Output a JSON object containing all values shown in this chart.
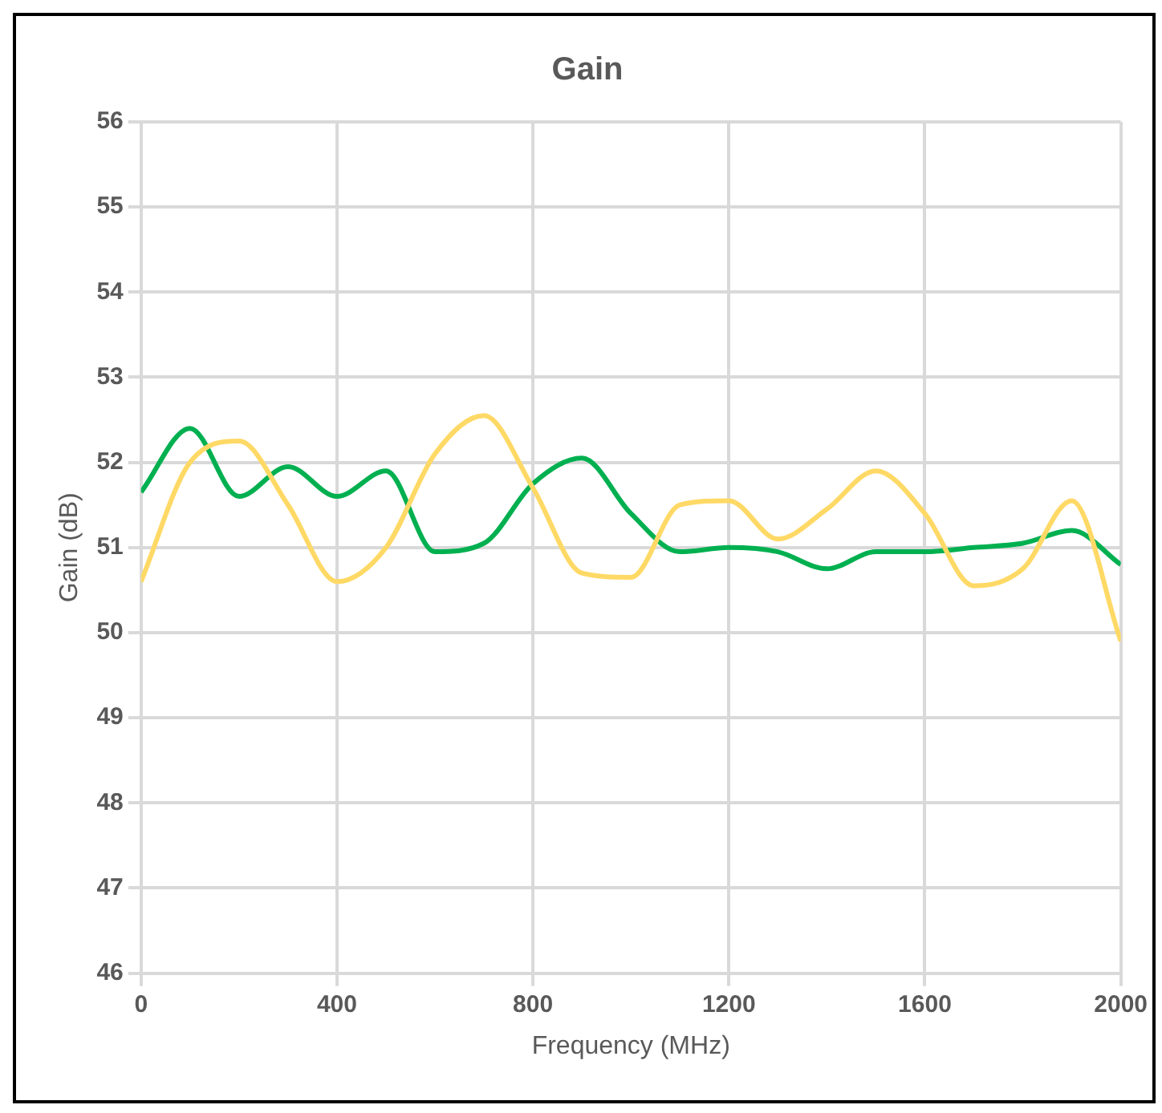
{
  "chart_data": {
    "type": "line",
    "title": "Gain",
    "xlabel": "Frequency (MHz)",
    "ylabel": "Gain (dB)",
    "x": [
      0,
      100,
      200,
      300,
      400,
      500,
      600,
      700,
      800,
      900,
      1000,
      1100,
      1200,
      1300,
      1400,
      1500,
      1600,
      1700,
      1800,
      1900,
      2000
    ],
    "series": [
      {
        "color": "#ffd966",
        "values": [
          50.6,
          52.0,
          52.25,
          51.5,
          50.6,
          51.0,
          52.1,
          52.55,
          51.7,
          50.7,
          50.65,
          51.5,
          51.55,
          51.1,
          51.45,
          51.9,
          51.4,
          50.55,
          50.75,
          51.55,
          49.9
        ]
      },
      {
        "color": "#00b050",
        "values": [
          51.65,
          52.4,
          51.6,
          51.95,
          51.6,
          51.9,
          50.95,
          51.05,
          51.75,
          52.05,
          51.4,
          50.95,
          51.0,
          50.95,
          50.75,
          50.95,
          50.95,
          51.0,
          51.05,
          51.2,
          50.8
        ]
      }
    ],
    "xlim": [
      0,
      2000
    ],
    "xticks": [
      0,
      400,
      800,
      1200,
      1600,
      2000
    ],
    "ylim": [
      46,
      56
    ],
    "yticks": [
      46,
      47,
      48,
      49,
      50,
      51,
      52,
      53,
      54,
      55,
      56
    ],
    "grid": true,
    "marker": "none",
    "line_style": "solid"
  }
}
